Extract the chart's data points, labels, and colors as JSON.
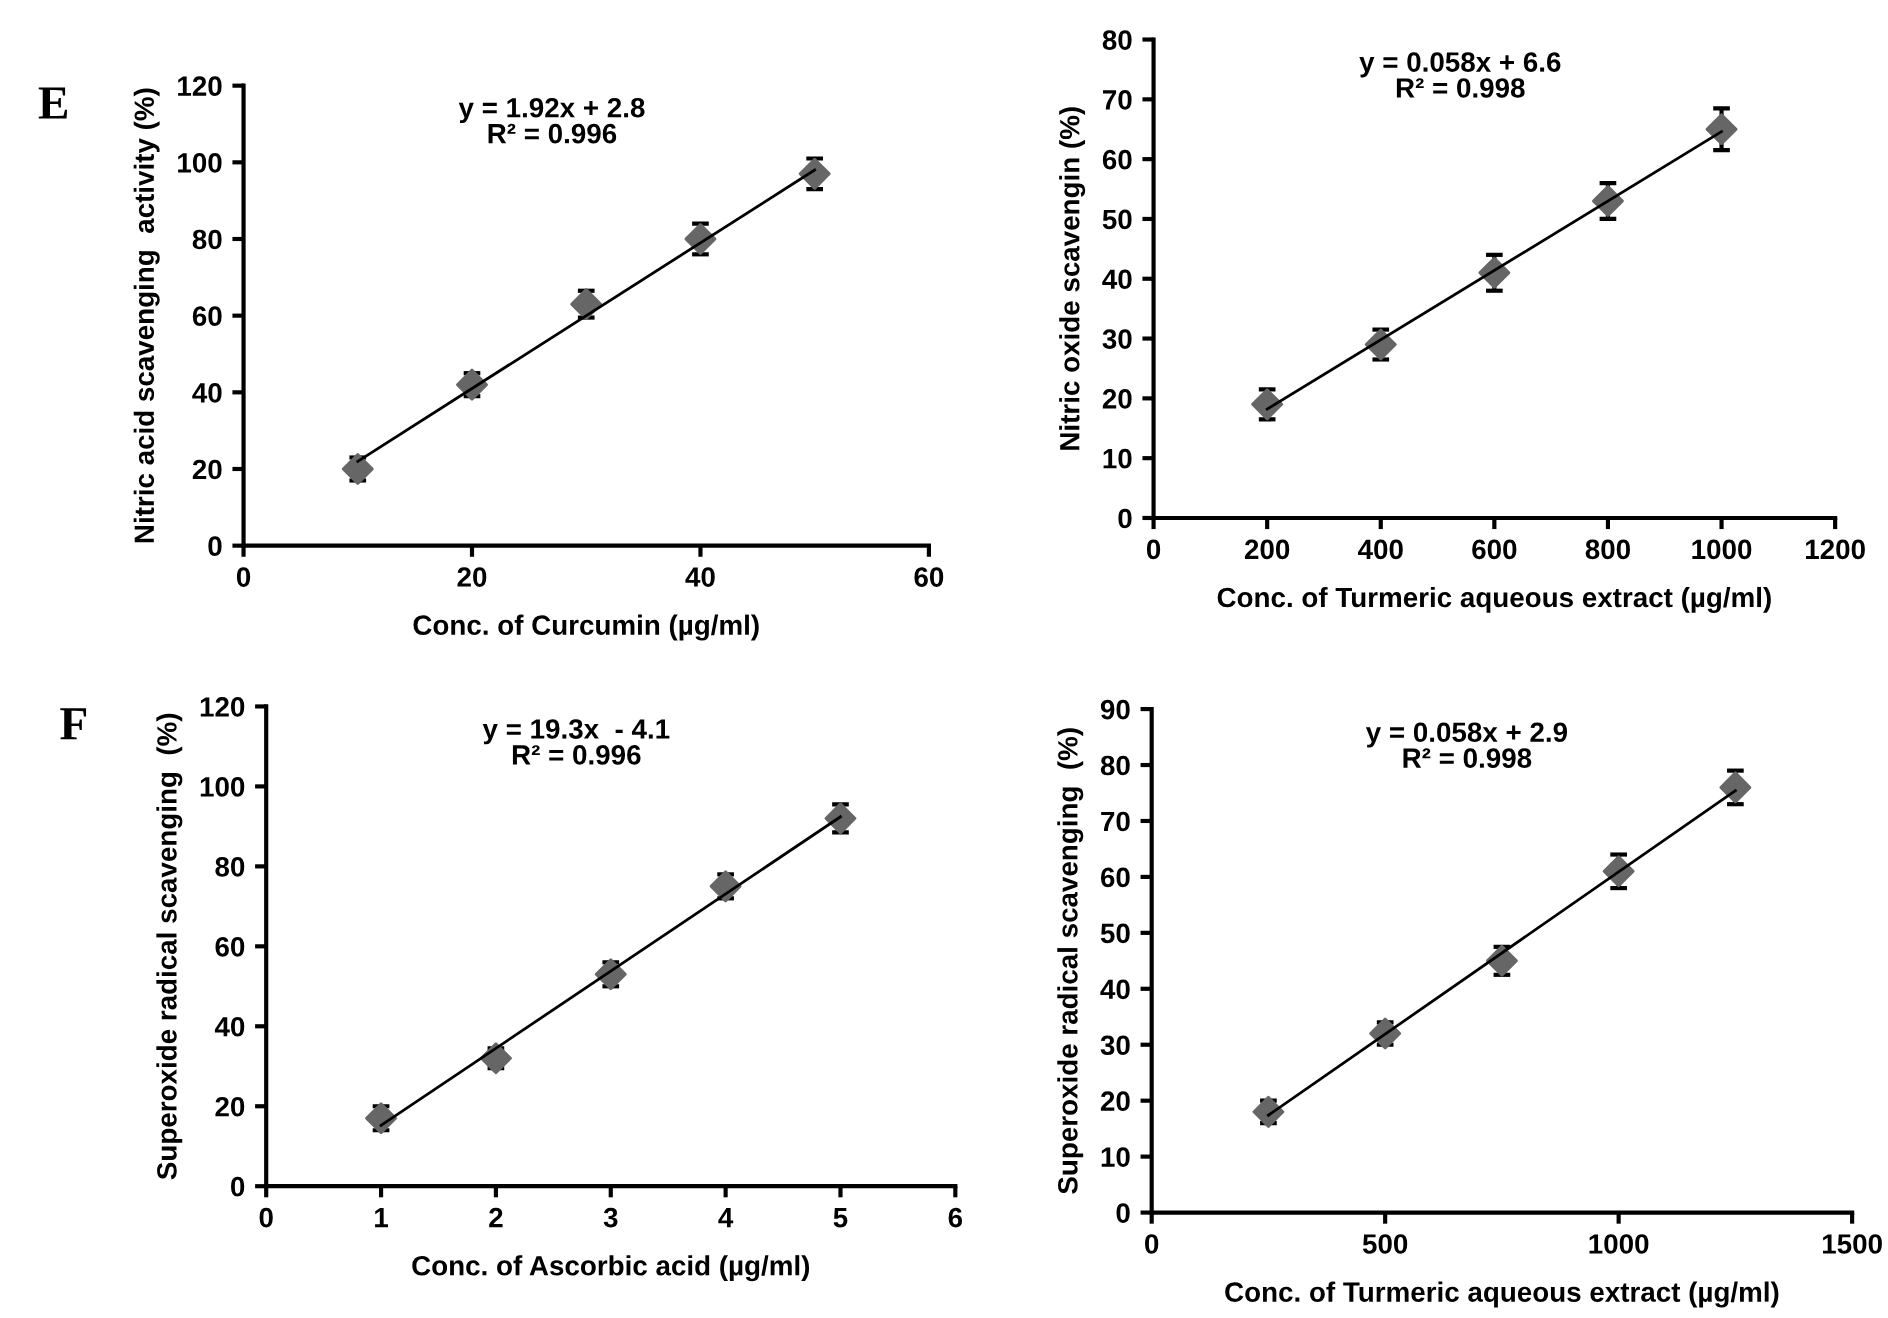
{
  "chart_data": [
    {
      "type": "scatter",
      "title": "E",
      "xlabel": "Conc. of Curcumin (µg/ml)",
      "ylabel": "Nitric acid scavenging  activity (%)",
      "annotations": [
        "y = 1.92x + 2.8\nR² = 0.996"
      ],
      "xlim": [
        0,
        60
      ],
      "xticks": [
        0,
        20,
        40,
        60
      ],
      "ylim": [
        0,
        120
      ],
      "yticks": [
        0,
        20,
        40,
        60,
        80,
        100,
        120
      ],
      "grid": false,
      "legend": false,
      "series": [
        {
          "color": "#666666",
          "marker": "diamond",
          "x": [
            10,
            20,
            30,
            40,
            50
          ],
          "values": [
            20,
            42,
            63,
            80,
            97
          ],
          "errors": [
            3,
            3,
            3.5,
            4,
            4
          ]
        },
        {
          "type": "line",
          "marker": "none",
          "color": "#000000",
          "x": [
            10,
            50
          ],
          "values": [
            22,
            98
          ]
        }
      ]
    },
    {
      "type": "scatter",
      "xlabel": "Conc. of Turmeric aqueous extract (µg/ml)",
      "ylabel": "Nitric oxide scavengin (%)",
      "annotations": [
        "y = 0.058x + 6.6\nR² = 0.998"
      ],
      "xlim": [
        0,
        1200
      ],
      "xticks": [
        0,
        200,
        400,
        600,
        800,
        1000,
        1200
      ],
      "ylim": [
        0,
        80
      ],
      "yticks": [
        0,
        10,
        20,
        30,
        40,
        50,
        60,
        70,
        80
      ],
      "grid": false,
      "legend": false,
      "series": [
        {
          "color": "#666666",
          "marker": "diamond",
          "x": [
            200,
            400,
            600,
            800,
            1000
          ],
          "values": [
            19,
            29,
            41,
            53,
            65
          ],
          "errors": [
            2.5,
            2.5,
            3,
            3,
            3.5
          ]
        },
        {
          "type": "line",
          "marker": "none",
          "color": "#000000",
          "x": [
            200,
            1000
          ],
          "values": [
            18.2,
            64.6
          ]
        }
      ]
    },
    {
      "type": "scatter",
      "title": "F",
      "xlabel": "Conc. of Ascorbic acid (µg/ml)",
      "ylabel": "Superoxide radical scavenging  (%)",
      "annotations": [
        "y = 19.3x  - 4.1\nR² = 0.996"
      ],
      "xlim": [
        0,
        6
      ],
      "xticks": [
        0,
        1,
        2,
        3,
        4,
        5,
        6
      ],
      "ylim": [
        0,
        120
      ],
      "yticks": [
        0,
        20,
        40,
        60,
        80,
        100,
        120
      ],
      "grid": false,
      "legend": false,
      "series": [
        {
          "color": "#666666",
          "marker": "diamond",
          "x": [
            1,
            2,
            3,
            4,
            5
          ],
          "values": [
            17,
            32,
            53,
            75,
            92
          ],
          "errors": [
            3,
            2.5,
            3,
            3,
            3.5
          ]
        },
        {
          "type": "line",
          "marker": "none",
          "color": "#000000",
          "x": [
            1,
            5
          ],
          "values": [
            15.2,
            92.4
          ]
        }
      ]
    },
    {
      "type": "scatter",
      "xlabel": "Conc. of Turmeric aqueous extract (µg/ml)",
      "ylabel": "Superoxide radical scavenging  (%)",
      "annotations": [
        "y = 0.058x + 2.9\nR² = 0.998"
      ],
      "xlim": [
        0,
        1500
      ],
      "xticks": [
        0,
        500,
        1000,
        1500
      ],
      "ylim": [
        0,
        90
      ],
      "yticks": [
        0,
        10,
        20,
        30,
        40,
        50,
        60,
        70,
        80,
        90
      ],
      "grid": false,
      "legend": false,
      "series": [
        {
          "color": "#666666",
          "marker": "diamond",
          "x": [
            250,
            500,
            750,
            1000,
            1250
          ],
          "values": [
            18,
            32,
            45,
            61,
            76
          ],
          "errors": [
            2,
            2,
            2.5,
            3,
            3
          ]
        },
        {
          "type": "line",
          "marker": "none",
          "color": "#000000",
          "x": [
            250,
            1250
          ],
          "values": [
            17.4,
            75.4
          ]
        }
      ]
    }
  ]
}
